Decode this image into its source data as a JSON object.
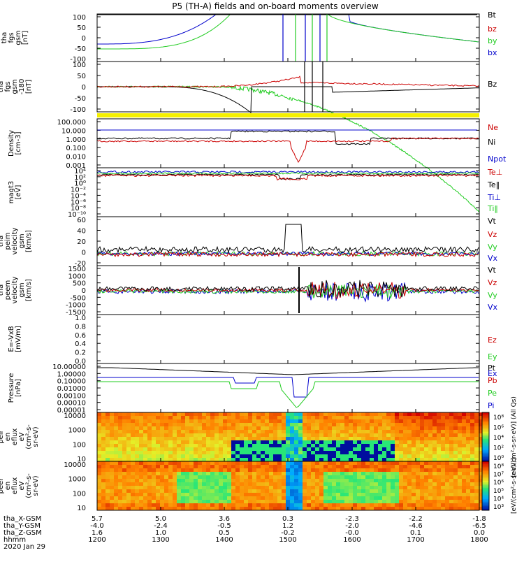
{
  "title": "P5 (TH-A) fields and on-board moments overview",
  "chart_data": {
    "type": "line",
    "title": "P5 (TH-A) fields and on-board moments overview",
    "x_axis": {
      "name": "hhmm",
      "ticks": [
        "1200",
        "1300",
        "1400",
        "1500",
        "1600",
        "1700",
        "1800"
      ],
      "extra_rows": [
        {
          "label": "tha_X-GSM",
          "values": [
            "5.7",
            "5.0",
            "3.6",
            "0.3",
            "-2.3",
            "-2.2",
            "-1.8"
          ]
        },
        {
          "label": "tha_Y-GSM",
          "values": [
            "-4.0",
            "-2.4",
            "-0.5",
            "1.2",
            "-2.0",
            "-4.6",
            "-6.5"
          ]
        },
        {
          "label": "tha_Z-GSM",
          "values": [
            "1.6",
            "1.0",
            "0.5",
            "-0.2",
            "-0.0",
            "0.1",
            "0.0"
          ]
        }
      ],
      "date": "2020 Jan 29"
    },
    "panels": [
      {
        "id": "fgs",
        "ylabel": [
          "tha",
          "fgs",
          "gsm",
          "[nT]"
        ],
        "yticks": [
          "100",
          "50",
          "0",
          "-50",
          "-100"
        ],
        "ylim": [
          -100,
          100
        ],
        "legend": [
          {
            "label": "Bt",
            "color": "#000000"
          },
          {
            "label": "bz",
            "color": "#cc0000"
          },
          {
            "label": "by",
            "color": "#22cc22"
          },
          {
            "label": "bx",
            "color": "#0000cc"
          }
        ]
      },
      {
        "id": "fgs_m180",
        "ylabel": [
          "tha",
          "fgs",
          "gsm",
          "-180",
          "[nT]"
        ],
        "yticks": [
          "100",
          "50",
          "0",
          "-50",
          "-100"
        ],
        "ylim": [
          -120,
          120
        ],
        "legend": [
          {
            "label": "Bz",
            "color": "#000000"
          }
        ]
      },
      {
        "id": "density",
        "ylabel": [
          "Density",
          "[cm-3]"
        ],
        "yticks": [
          "100.000",
          "10.000",
          "1.000",
          "0.100",
          "0.010",
          "0.001"
        ],
        "ylim": [
          0.0003,
          300
        ],
        "scale": "log",
        "legend": [
          {
            "label": "Ne",
            "color": "#cc0000"
          },
          {
            "label": "Ni",
            "color": "#000000"
          },
          {
            "label": "Npot",
            "color": "#0000cc"
          }
        ]
      },
      {
        "id": "temp",
        "ylabel": [
          "magt3",
          "[eV]"
        ],
        "yticks": [
          "10⁴",
          "10²",
          "10⁰",
          "10⁻²",
          "10⁻⁴",
          "10⁻⁶",
          "10⁻⁸",
          "10⁻¹⁰"
        ],
        "ylim": [
          1e-10,
          10000.0
        ],
        "scale": "log",
        "legend": [
          {
            "label": "Te⊥",
            "color": "#cc0000"
          },
          {
            "label": "Te‖",
            "color": "#000000"
          },
          {
            "label": "Ti⊥",
            "color": "#0000cc"
          },
          {
            "label": "Ti‖",
            "color": "#22cc22"
          }
        ]
      },
      {
        "id": "vi",
        "ylabel": [
          "tha",
          "peim",
          "velocity",
          "gsm",
          "[km/s]"
        ],
        "yticks": [
          "60",
          "40",
          "20",
          "0",
          "-20"
        ],
        "ylim": [
          -20,
          60
        ],
        "legend": [
          {
            "label": "Vt",
            "color": "#000000"
          },
          {
            "label": "Vz",
            "color": "#cc0000"
          },
          {
            "label": "Vy",
            "color": "#22cc22"
          },
          {
            "label": "Vx",
            "color": "#0000cc"
          }
        ]
      },
      {
        "id": "ve",
        "ylabel": [
          "tha",
          "peem",
          "velocity",
          "gsm",
          "[km/s]"
        ],
        "yticks": [
          "1500",
          "1000",
          "500",
          "0",
          "-500",
          "-1000",
          "-1500"
        ],
        "ylim": [
          -1500,
          1500
        ],
        "legend": [
          {
            "label": "Vt",
            "color": "#000000"
          },
          {
            "label": "Vz",
            "color": "#cc0000"
          },
          {
            "label": "Vy",
            "color": "#22cc22"
          },
          {
            "label": "Vx",
            "color": "#0000cc"
          }
        ]
      },
      {
        "id": "efield",
        "ylabel": [
          "E=-VxB",
          "[mV/m]"
        ],
        "yticks": [
          "1.0",
          "0.8",
          "0.6",
          "0.4",
          "0.2",
          "0.0"
        ],
        "ylim": [
          0,
          1
        ],
        "legend": [
          {
            "label": "Ez",
            "color": "#cc0000"
          },
          {
            "label": "Ey",
            "color": "#22cc22"
          },
          {
            "label": "Ex",
            "color": "#0000cc"
          }
        ]
      },
      {
        "id": "pressure",
        "ylabel": [
          "Pressure",
          "[nPa]"
        ],
        "yticks": [
          "10.00000",
          "1.00000",
          "0.10000",
          "0.01000",
          "0.00100",
          "0.00010",
          "0.00001"
        ],
        "ylim": [
          8e-06,
          20
        ],
        "scale": "log",
        "legend": [
          {
            "label": "Pt",
            "color": "#000000"
          },
          {
            "label": "Pb",
            "color": "#cc0000"
          },
          {
            "label": "Pe",
            "color": "#22cc22"
          },
          {
            "label": "Pi",
            "color": "#0000cc"
          }
        ]
      },
      {
        "id": "ion_spec",
        "type": "heatmap",
        "ylabel": [
          "tha",
          "peir",
          "en",
          "eflux",
          "eV",
          "(cm²-s-",
          "sr-eV)"
        ],
        "yticks": [
          "10000",
          "1000",
          "100",
          "10"
        ],
        "ylim": [
          5,
          25000
        ]
      },
      {
        "id": "el_spec",
        "type": "heatmap",
        "ylabel": [
          "tha",
          "peer",
          "en",
          "eflux",
          "eV",
          "(cm²-s-",
          "sr-eV)"
        ],
        "yticks": [
          "10000",
          "1000",
          "100",
          "10"
        ],
        "ylim": [
          5,
          25000
        ]
      }
    ],
    "colorbars": [
      {
        "ticks": [
          "10⁸",
          "10⁶",
          "10⁴",
          "10²",
          "10⁰"
        ],
        "label": "[eV/(cm²-s-sr-eV)] (All Qs)"
      },
      {
        "ticks": [
          "10⁸",
          "10⁷",
          "10⁶",
          "10⁵",
          "10⁴",
          "10³"
        ],
        "label": "[eV/(cm²-s-sr-eV)]"
      }
    ]
  }
}
